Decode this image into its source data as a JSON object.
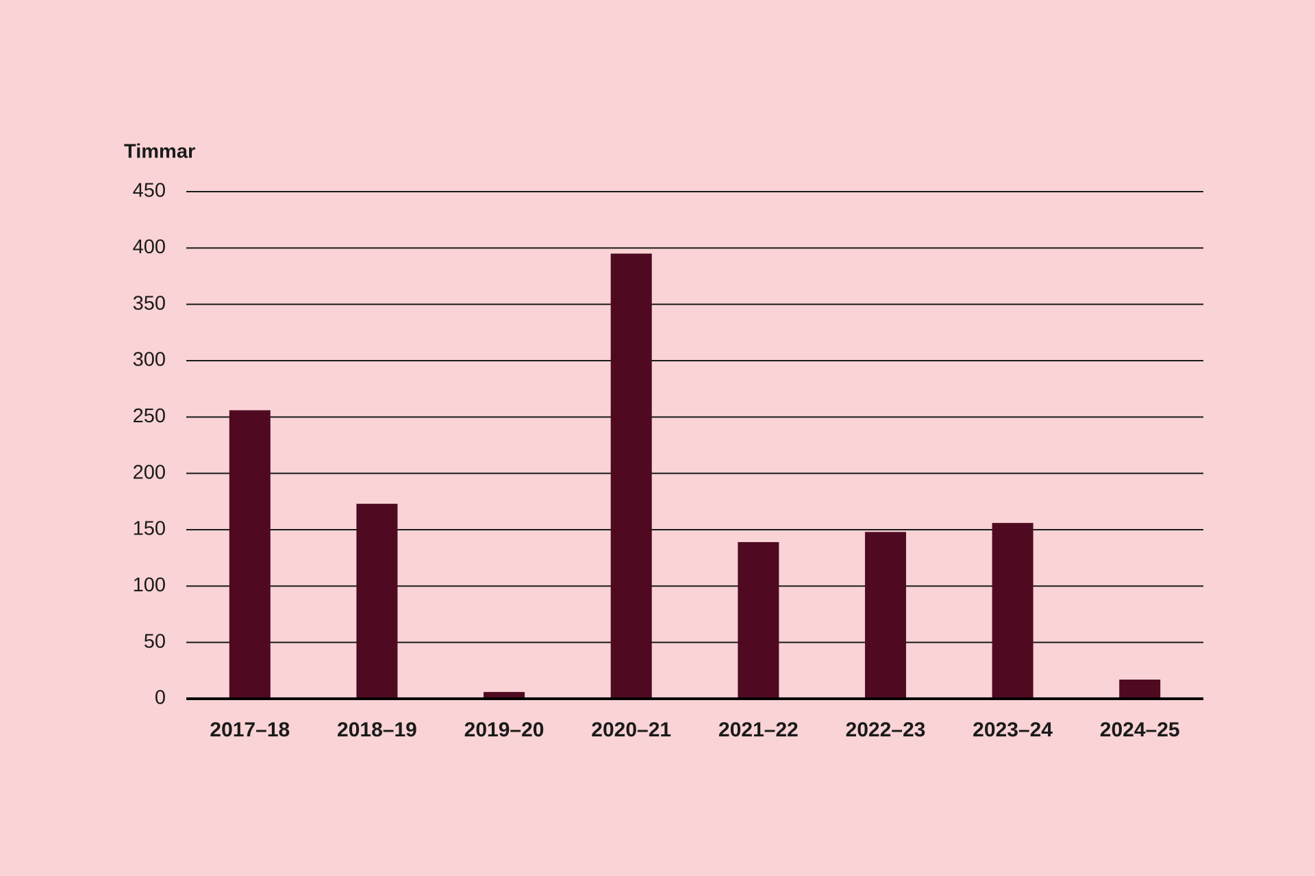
{
  "chart_data": {
    "type": "bar",
    "y_axis_label": "Timmar",
    "categories": [
      "2017–18",
      "2018–19",
      "2019–20",
      "2020–21",
      "2021–22",
      "2022–23",
      "2023–24",
      "2024–25"
    ],
    "values": [
      256,
      173,
      6,
      395,
      139,
      148,
      156,
      17
    ],
    "color": "#4f0a21",
    "ylim": [
      0,
      450
    ],
    "yticks": [
      0,
      50,
      100,
      150,
      200,
      250,
      300,
      350,
      400,
      450
    ],
    "grid": true
  }
}
